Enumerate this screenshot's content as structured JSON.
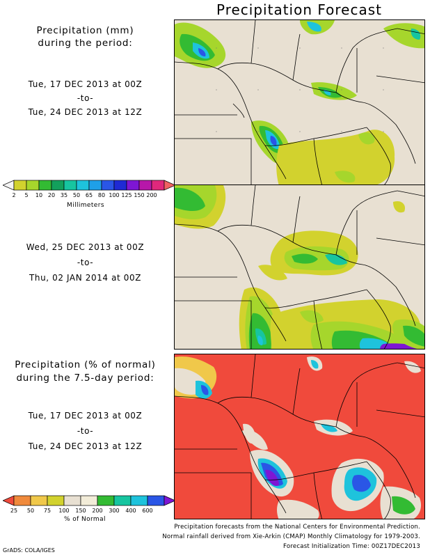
{
  "title": "Precipitation Forecast",
  "section1": {
    "heading_line1": "Precipitation (mm)",
    "heading_line2": "during the period:",
    "start": "Tue, 17 DEC 2013 at 00Z",
    "sep": "-to-",
    "end": "Tue, 24 DEC 2013 at 12Z"
  },
  "colorbar_mm": {
    "ticks": [
      "2",
      "5",
      "10",
      "20",
      "35",
      "50",
      "65",
      "80",
      "100",
      "125",
      "150",
      "200"
    ],
    "unit": "Millimeters",
    "colors": [
      "#f4f4f4",
      "#d2d22e",
      "#a6d62c",
      "#33bb33",
      "#13a05c",
      "#17c5a0",
      "#1ec3dc",
      "#1fa0e8",
      "#2a56e6",
      "#1f2ad4",
      "#7e16d4",
      "#b717a9",
      "#e0287c",
      "#f06262"
    ]
  },
  "section2": {
    "start": "Wed, 25 DEC 2013 at 00Z",
    "sep": "-to-",
    "end": "Thu, 02 JAN 2014 at 00Z"
  },
  "section3": {
    "heading_line1": "Precipitation (% of normal)",
    "heading_line2": "during the 7.5-day period:",
    "start": "Tue, 17 DEC 2013 at 00Z",
    "sep": "-to-",
    "end": "Tue, 24 DEC 2013 at 12Z"
  },
  "colorbar_pct": {
    "ticks": [
      "25",
      "50",
      "75",
      "100",
      "150",
      "200",
      "300",
      "400",
      "600"
    ],
    "unit": "% of Normal",
    "colors": [
      "#f04a3c",
      "#f08a3c",
      "#f0c84a",
      "#d2d22e",
      "#e8e0d2",
      "#f2ecd8",
      "#33bb33",
      "#17c5a0",
      "#1ec3dc",
      "#2a56e6",
      "#7e16d4"
    ]
  },
  "footer": {
    "line1": "Precipitation forecasts from the National Centers for Environmental Prediction.",
    "line2": "Normal rainfall derived from Xie-Arkin (CMAP) Monthly Climatology for 1979-2003.",
    "line3": "Forecast Initialization Time: 00Z17DEC2013"
  },
  "credit": "GrADS: COLA/IGES",
  "colors": {
    "land": "#e8e0d2",
    "pct_background": "#f04a3c"
  }
}
